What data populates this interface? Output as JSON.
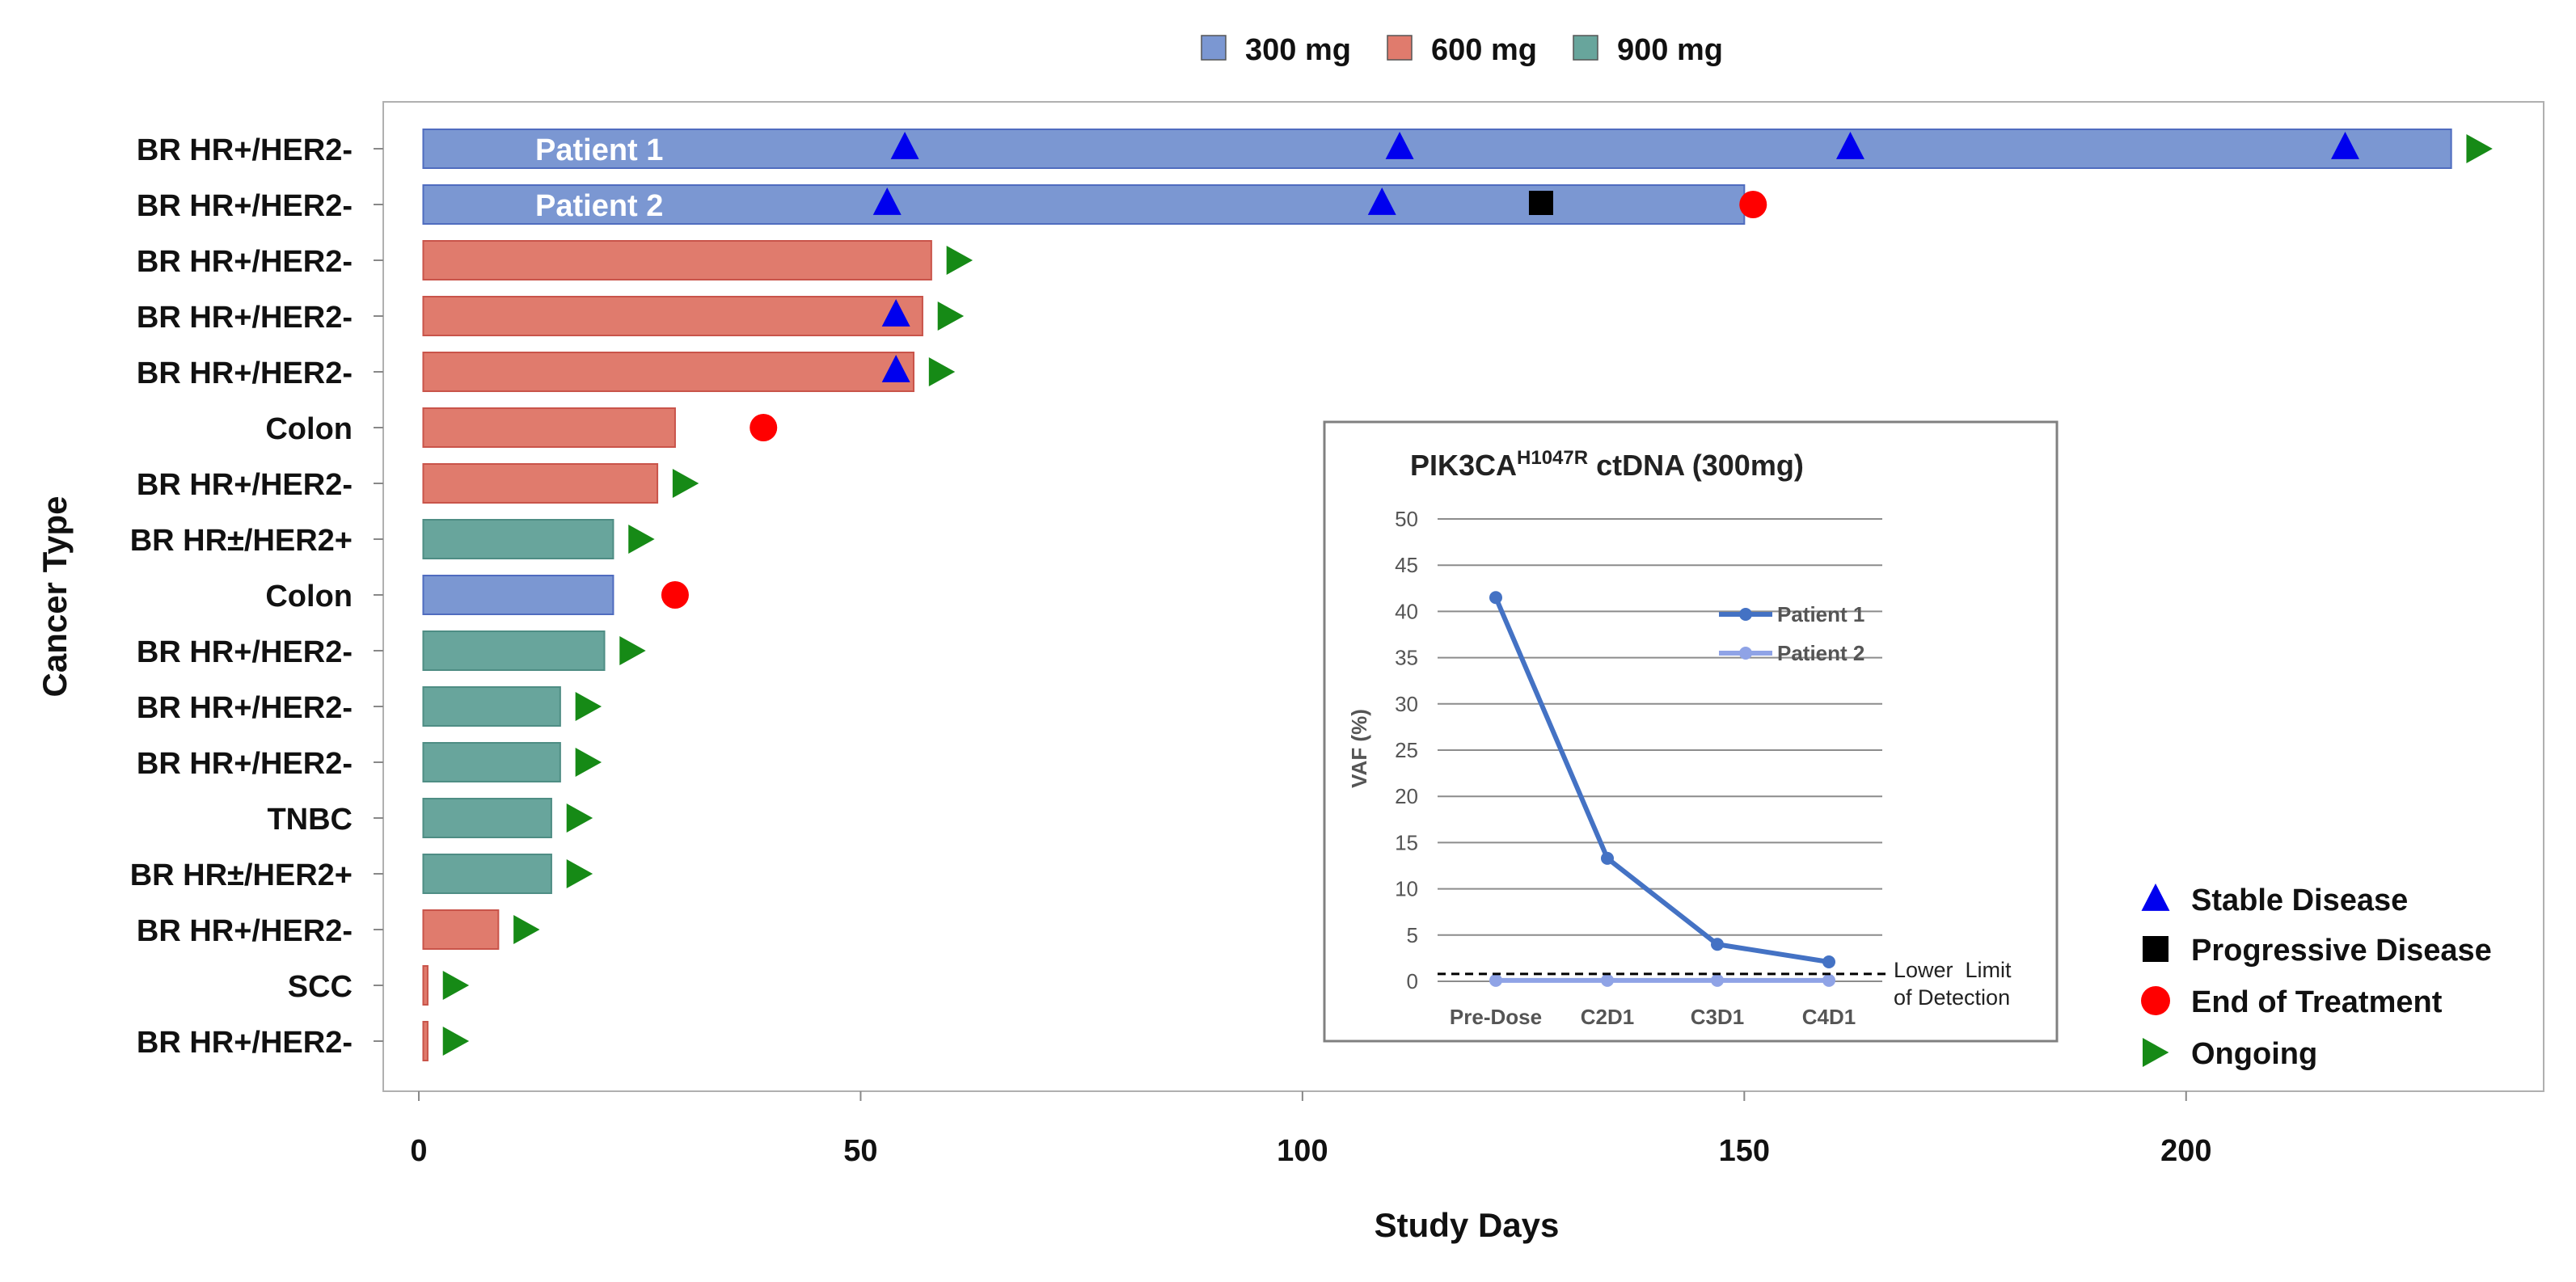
{
  "chart_data": [
    {
      "type": "swimmer",
      "title": "",
      "xlabel": "Study Days",
      "ylabel": "Cancer Type",
      "xlim": [
        -1,
        236
      ],
      "xticks": [
        0,
        50,
        100,
        150,
        200
      ],
      "legend_dose": [
        {
          "name": "300 mg",
          "color": "#7b97d2"
        },
        {
          "name": "600 mg",
          "color": "#e07b6d"
        },
        {
          "name": "900 mg",
          "color": "#68a59c"
        }
      ],
      "legend_events": [
        {
          "name": "Stable Disease",
          "symbol": "triangle",
          "color": "#0000ee"
        },
        {
          "name": "Progressive Disease",
          "symbol": "square",
          "color": "#000000"
        },
        {
          "name": "End of Treatment",
          "symbol": "circle",
          "color": "#ff0000"
        },
        {
          "name": "Ongoing",
          "symbol": "arrow",
          "color": "#168a16"
        }
      ],
      "rows": [
        {
          "cancer": "BR HR+/HER2-",
          "dose": "300 mg",
          "days": 230,
          "label": "Patient 1",
          "stable": [
            55,
            111,
            162,
            218
          ],
          "progressive": [],
          "end_treatment": null,
          "ongoing": 233
        },
        {
          "cancer": "BR HR+/HER2-",
          "dose": "300 mg",
          "days": 150,
          "label": "Patient 2",
          "stable": [
            53,
            109
          ],
          "progressive": [
            127
          ],
          "end_treatment": 151,
          "ongoing": null
        },
        {
          "cancer": "BR HR+/HER2-",
          "dose": "600 mg",
          "days": 58,
          "label": "",
          "stable": [],
          "progressive": [],
          "end_treatment": null,
          "ongoing": 61
        },
        {
          "cancer": "BR HR+/HER2-",
          "dose": "600 mg",
          "days": 57,
          "label": "",
          "stable": [
            54
          ],
          "progressive": [],
          "end_treatment": null,
          "ongoing": 60
        },
        {
          "cancer": "BR HR+/HER2-",
          "dose": "600 mg",
          "days": 56,
          "label": "",
          "stable": [
            54
          ],
          "progressive": [],
          "end_treatment": null,
          "ongoing": 59
        },
        {
          "cancer": "Colon",
          "dose": "600 mg",
          "days": 29,
          "label": "",
          "stable": [],
          "progressive": [],
          "end_treatment": 39,
          "ongoing": null
        },
        {
          "cancer": "BR HR+/HER2-",
          "dose": "600 mg",
          "days": 27,
          "label": "",
          "stable": [],
          "progressive": [],
          "end_treatment": null,
          "ongoing": 30
        },
        {
          "cancer": "BR HR±/HER2+",
          "dose": "900 mg",
          "days": 22,
          "label": "",
          "stable": [],
          "progressive": [],
          "end_treatment": null,
          "ongoing": 25
        },
        {
          "cancer": "Colon",
          "dose": "300 mg",
          "days": 22,
          "label": "",
          "stable": [],
          "progressive": [],
          "end_treatment": 29,
          "ongoing": null
        },
        {
          "cancer": "BR HR+/HER2-",
          "dose": "900 mg",
          "days": 21,
          "label": "",
          "stable": [],
          "progressive": [],
          "end_treatment": null,
          "ongoing": 24
        },
        {
          "cancer": "BR HR+/HER2-",
          "dose": "900 mg",
          "days": 16,
          "label": "",
          "stable": [],
          "progressive": [],
          "end_treatment": null,
          "ongoing": 19
        },
        {
          "cancer": "BR HR+/HER2-",
          "dose": "900 mg",
          "days": 16,
          "label": "",
          "stable": [],
          "progressive": [],
          "end_treatment": null,
          "ongoing": 19
        },
        {
          "cancer": "TNBC",
          "dose": "900 mg",
          "days": 15,
          "label": "",
          "stable": [],
          "progressive": [],
          "end_treatment": null,
          "ongoing": 18
        },
        {
          "cancer": "BR HR±/HER2+",
          "dose": "900 mg",
          "days": 15,
          "label": "",
          "stable": [],
          "progressive": [],
          "end_treatment": null,
          "ongoing": 18
        },
        {
          "cancer": "BR HR+/HER2-",
          "dose": "600 mg",
          "days": 9,
          "label": "",
          "stable": [],
          "progressive": [],
          "end_treatment": null,
          "ongoing": 12
        },
        {
          "cancer": "SCC",
          "dose": "600 mg",
          "days": 1,
          "label": "",
          "stable": [],
          "progressive": [],
          "end_treatment": null,
          "ongoing": 4
        },
        {
          "cancer": "BR HR+/HER2-",
          "dose": "600 mg",
          "days": 1,
          "label": "",
          "stable": [],
          "progressive": [],
          "end_treatment": null,
          "ongoing": 4
        }
      ]
    },
    {
      "type": "line",
      "title_main": "PIK3CA",
      "title_sup": "H1047R",
      "title_rest": " ctDNA (300mg)",
      "ylabel": "VAF (%)",
      "categories": [
        "Pre-Dose",
        "C2D1",
        "C3D1",
        "C4D1"
      ],
      "ylim": [
        0,
        50
      ],
      "yticks": [
        0,
        5,
        10,
        15,
        20,
        25,
        30,
        35,
        40,
        45,
        50
      ],
      "grid": true,
      "series": [
        {
          "name": "Patient 1",
          "color": "#4472c4",
          "values": [
            41.5,
            13.3,
            4.0,
            2.1
          ]
        },
        {
          "name": "Patient 2",
          "color": "#8fa3e6",
          "values": [
            0.1,
            0.1,
            0.1,
            0.1
          ]
        }
      ],
      "lod": {
        "value": 0.8,
        "label_line1": "Lower  Limit",
        "label_line2": "of Detection"
      }
    }
  ]
}
